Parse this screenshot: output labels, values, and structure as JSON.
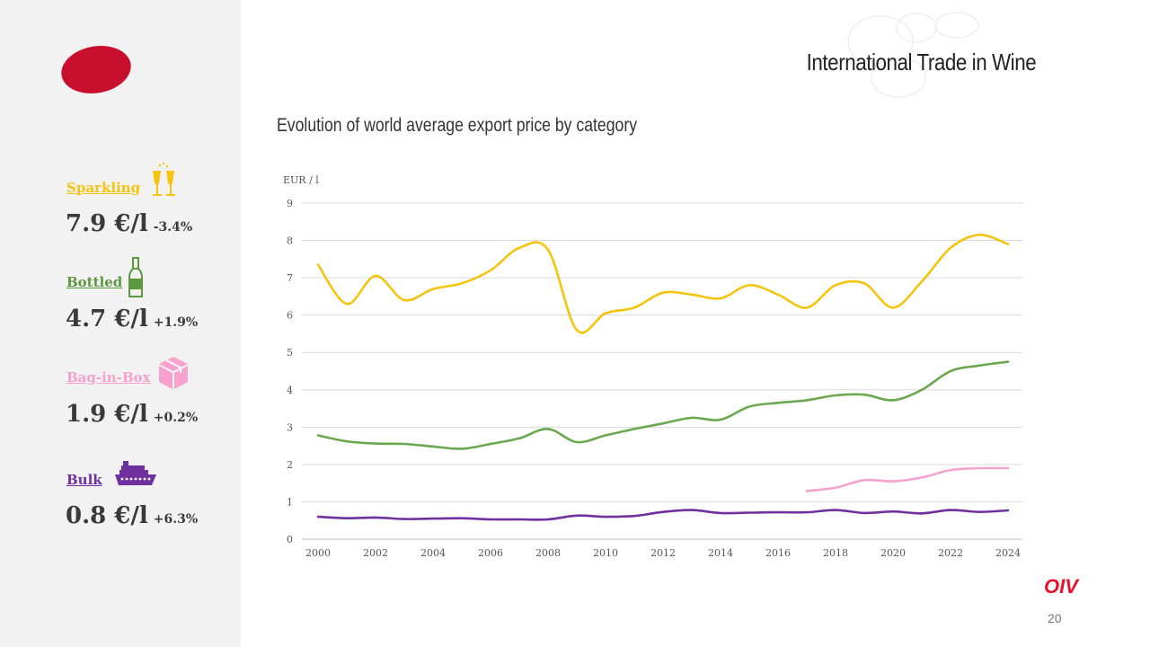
{
  "header": {
    "title": "International Trade in Wine"
  },
  "categories": [
    {
      "label": "Sparkling",
      "price": "7.9 €/l",
      "change": "-3.4%",
      "color": "#f5c40f",
      "icon": "champagne-glasses-icon"
    },
    {
      "label": "Bottled",
      "price": "4.7 €/l",
      "change": "+1.9%",
      "color": "#5b9a3c",
      "icon": "wine-bottle-icon"
    },
    {
      "label": "Bag-in-Box",
      "price": "1.9 €/l",
      "change": "+0.2%",
      "color": "#f7a1cf",
      "icon": "box-icon"
    },
    {
      "label": "Bulk",
      "price": "0.8 €/l",
      "change": "+6.3%",
      "color": "#7030a0",
      "icon": "ship-icon"
    }
  ],
  "chart_data": {
    "type": "line",
    "title": "Evolution of world average export price by category",
    "ylabel": "EUR / l",
    "xlabel": "",
    "ylim": [
      0,
      9
    ],
    "yticks": [
      0,
      1,
      2,
      3,
      4,
      5,
      6,
      7,
      8,
      9
    ],
    "xlim": [
      2000,
      2024
    ],
    "xticks": [
      2000,
      2002,
      2004,
      2006,
      2008,
      2010,
      2012,
      2014,
      2016,
      2018,
      2020,
      2022,
      2024
    ],
    "grid": true,
    "series": [
      {
        "name": "Sparkling",
        "color": "#f5c40f",
        "x": [
          2000,
          2001,
          2002,
          2003,
          2004,
          2005,
          2006,
          2007,
          2008,
          2009,
          2010,
          2011,
          2012,
          2013,
          2014,
          2015,
          2016,
          2017,
          2018,
          2019,
          2020,
          2021,
          2022,
          2023,
          2024
        ],
        "values": [
          7.35,
          6.3,
          7.05,
          6.4,
          6.7,
          6.85,
          7.2,
          7.8,
          7.75,
          5.6,
          6.05,
          6.2,
          6.6,
          6.55,
          6.45,
          6.8,
          6.55,
          6.2,
          6.8,
          6.85,
          6.2,
          6.9,
          7.8,
          8.15,
          7.9
        ]
      },
      {
        "name": "Bottled",
        "color": "#6aa84f",
        "x": [
          2000,
          2001,
          2002,
          2003,
          2004,
          2005,
          2006,
          2007,
          2008,
          2009,
          2010,
          2011,
          2012,
          2013,
          2014,
          2015,
          2016,
          2017,
          2018,
          2019,
          2020,
          2021,
          2022,
          2023,
          2024
        ],
        "values": [
          2.78,
          2.62,
          2.56,
          2.55,
          2.48,
          2.42,
          2.55,
          2.7,
          2.95,
          2.6,
          2.78,
          2.95,
          3.1,
          3.25,
          3.2,
          3.55,
          3.65,
          3.72,
          3.85,
          3.87,
          3.72,
          4.0,
          4.5,
          4.65,
          4.75
        ]
      },
      {
        "name": "Bag-in-Box",
        "color": "#f7a1cf",
        "x": [
          2017,
          2018,
          2019,
          2020,
          2021,
          2022,
          2023,
          2024
        ],
        "values": [
          1.29,
          1.38,
          1.58,
          1.55,
          1.65,
          1.85,
          1.9,
          1.9
        ]
      },
      {
        "name": "Bulk",
        "color": "#7030a0",
        "x": [
          2000,
          2001,
          2002,
          2003,
          2004,
          2005,
          2006,
          2007,
          2008,
          2009,
          2010,
          2011,
          2012,
          2013,
          2014,
          2015,
          2016,
          2017,
          2018,
          2019,
          2020,
          2021,
          2022,
          2023,
          2024
        ],
        "values": [
          0.6,
          0.56,
          0.58,
          0.54,
          0.55,
          0.56,
          0.53,
          0.53,
          0.53,
          0.63,
          0.6,
          0.62,
          0.73,
          0.78,
          0.7,
          0.71,
          0.72,
          0.72,
          0.78,
          0.7,
          0.74,
          0.69,
          0.78,
          0.73,
          0.77
        ]
      }
    ]
  },
  "footer": {
    "brand": "OIV",
    "page": "20"
  }
}
